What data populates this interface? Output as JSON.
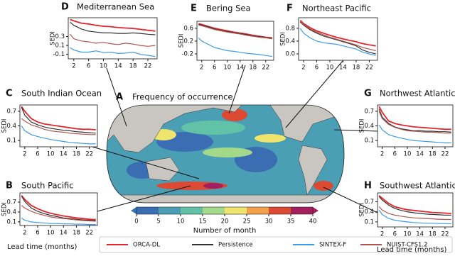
{
  "legend": [
    {
      "name": "ORCA-DL",
      "color": "#e3262a"
    },
    {
      "name": "Persistence",
      "color": "#333333"
    },
    {
      "name": "SINTEX-F",
      "color": "#3d9be6"
    },
    {
      "name": "NUIST-CFS1.2",
      "color": "#b0564f"
    }
  ],
  "map": {
    "label": "A",
    "title": "Frequency of occurrence",
    "colorbar": {
      "ticks": [
        0,
        5,
        10,
        15,
        20,
        25,
        30,
        35,
        40
      ],
      "colors": [
        "#3b6db3",
        "#4a9fb5",
        "#62c2a8",
        "#a5d98a",
        "#f0e56c",
        "#f2a24a",
        "#dd4a34",
        "#a3205c"
      ],
      "label": "Number of month"
    }
  },
  "chart_data": [
    {
      "type": "line",
      "label": "D",
      "title": "Mediterranean Sea",
      "ylabel": "SEDI",
      "x": [
        1,
        2,
        4,
        6,
        8,
        10,
        12,
        14,
        16,
        18,
        20,
        22,
        24
      ],
      "xlim": [
        0.5,
        24.5
      ],
      "xticks": [
        2,
        6,
        10,
        14,
        18,
        22
      ],
      "ylim": [
        -0.2,
        0.72
      ],
      "yticks": [
        -0.1,
        0.1,
        0.3
      ],
      "series": [
        {
          "color": "#e3262a",
          "values": [
            0.68,
            0.65,
            0.6,
            0.58,
            0.55,
            0.53,
            0.52,
            0.5,
            0.49,
            0.48,
            0.46,
            0.44,
            0.42
          ]
        },
        {
          "color": "#333333",
          "values": [
            0.62,
            0.55,
            0.47,
            0.42,
            0.4,
            0.38,
            0.38,
            0.37,
            0.37,
            0.38,
            0.37,
            0.35,
            0.34
          ]
        },
        {
          "color": "#3d9be6",
          "values": [
            0.05,
            0.0,
            -0.05,
            -0.05,
            -0.02,
            -0.06,
            -0.05,
            -0.08,
            -0.07,
            -0.05,
            -0.1,
            -0.12,
            -0.15
          ]
        },
        {
          "color": "#b0564f",
          "values": [
            0.35,
            0.25,
            0.2,
            0.18,
            0.15,
            0.17,
            0.14,
            0.12,
            0.15,
            0.13,
            0.1,
            0.08,
            0.1
          ]
        }
      ]
    },
    {
      "type": "line",
      "label": "E",
      "title": "Bering Sea",
      "ylabel": "SEDI",
      "x": [
        1,
        2,
        4,
        6,
        8,
        10,
        12,
        14,
        16,
        18,
        20,
        22,
        24
      ],
      "xlim": [
        0.5,
        24.5
      ],
      "xticks": [
        2,
        6,
        10,
        14,
        18,
        22
      ],
      "ylim": [
        -0.4,
        0.82
      ],
      "yticks": [
        -0.2,
        0.2,
        0.6
      ],
      "series": [
        {
          "color": "#e3262a",
          "values": [
            0.75,
            0.72,
            0.66,
            0.6,
            0.56,
            0.52,
            0.48,
            0.45,
            0.42,
            0.38,
            0.35,
            0.32,
            0.3
          ]
        },
        {
          "color": "#333333",
          "values": [
            0.72,
            0.7,
            0.65,
            0.58,
            0.53,
            0.5,
            0.46,
            0.44,
            0.4,
            0.36,
            0.34,
            0.31,
            0.28
          ]
        },
        {
          "color": "#3d9be6",
          "values": [
            0.3,
            0.2,
            0.1,
            0.0,
            -0.05,
            -0.1,
            -0.12,
            -0.15,
            -0.18,
            -0.2,
            -0.22,
            -0.25,
            -0.28
          ]
        },
        {
          "color": "#b0564f",
          "values": [
            0.7,
            0.68,
            0.62,
            0.56,
            0.52,
            0.48,
            0.45,
            0.42,
            0.38,
            0.35,
            0.32,
            0.3,
            0.27
          ]
        }
      ]
    },
    {
      "type": "line",
      "label": "F",
      "title": "Northeast Pacific",
      "ylabel": "SEDI",
      "x": [
        1,
        2,
        4,
        6,
        8,
        10,
        12,
        14,
        16,
        18,
        20,
        22,
        24
      ],
      "xlim": [
        0.5,
        24.5
      ],
      "xticks": [
        2,
        6,
        10,
        14,
        18,
        22
      ],
      "ylim": [
        -0.2,
        1.13
      ],
      "yticks": [
        {
          "value": 0,
          "label": "0.0"
        },
        0.4,
        0.8
      ],
      "series": [
        {
          "color": "#e3262a",
          "values": [
            1.05,
            0.95,
            0.82,
            0.72,
            0.65,
            0.58,
            0.52,
            0.47,
            0.42,
            0.38,
            0.32,
            0.28,
            0.25
          ]
        },
        {
          "color": "#333333",
          "values": [
            1.0,
            0.9,
            0.75,
            0.65,
            0.56,
            0.5,
            0.44,
            0.38,
            0.32,
            0.25,
            0.12,
            0.05,
            0.0
          ]
        },
        {
          "color": "#3d9be6",
          "values": [
            0.8,
            0.65,
            0.5,
            0.4,
            0.35,
            0.32,
            0.3,
            0.25,
            0.2,
            0.15,
            0.05,
            0.0,
            -0.05
          ]
        },
        {
          "color": "#b0564f",
          "values": [
            1.02,
            0.92,
            0.78,
            0.68,
            0.6,
            0.52,
            0.46,
            0.4,
            0.34,
            0.28,
            0.2,
            0.15,
            0.1
          ]
        }
      ]
    },
    {
      "type": "line",
      "label": "C",
      "title": "South Indian Ocean",
      "ylabel": "SEDI",
      "x": [
        1,
        2,
        4,
        6,
        8,
        10,
        12,
        14,
        16,
        18,
        20,
        22,
        24
      ],
      "xlim": [
        0.5,
        24.5
      ],
      "xticks": [
        2,
        6,
        10,
        14,
        18,
        22
      ],
      "ylim": [
        -0.03,
        0.83
      ],
      "yticks": [
        0.1,
        0.4,
        0.7
      ],
      "series": [
        {
          "color": "#e3262a",
          "values": [
            0.8,
            0.7,
            0.55,
            0.48,
            0.44,
            0.42,
            0.4,
            0.38,
            0.36,
            0.34,
            0.33,
            0.33,
            0.32
          ]
        },
        {
          "color": "#333333",
          "values": [
            0.78,
            0.62,
            0.48,
            0.42,
            0.38,
            0.35,
            0.33,
            0.31,
            0.3,
            0.28,
            0.27,
            0.26,
            0.25
          ]
        },
        {
          "color": "#3d9be6",
          "values": [
            0.4,
            0.3,
            0.22,
            0.18,
            0.15,
            0.12,
            0.1,
            0.08,
            0.06,
            0.05,
            0.04,
            0.03,
            0.03
          ]
        },
        {
          "color": "#b0564f",
          "values": [
            0.55,
            0.5,
            0.42,
            0.38,
            0.33,
            0.3,
            0.28,
            0.27,
            0.25,
            0.24,
            0.23,
            0.22,
            0.22
          ]
        }
      ]
    },
    {
      "type": "line",
      "label": "B",
      "title": "South Pacific",
      "ylabel": "SEDI",
      "xlabel": "Lead time (months)",
      "x": [
        1,
        2,
        4,
        6,
        8,
        10,
        12,
        14,
        16,
        18,
        20,
        22,
        24
      ],
      "xlim": [
        0.5,
        24.5
      ],
      "xticks": [
        2,
        6,
        10,
        14,
        18,
        22
      ],
      "ylim": [
        -0.01,
        0.98
      ],
      "yticks": [
        0.1,
        0.4,
        0.7
      ],
      "series": [
        {
          "color": "#e3262a",
          "values": [
            0.9,
            0.78,
            0.6,
            0.5,
            0.42,
            0.36,
            0.32,
            0.28,
            0.25,
            0.22,
            0.2,
            0.18,
            0.17
          ]
        },
        {
          "color": "#333333",
          "values": [
            0.88,
            0.72,
            0.52,
            0.42,
            0.35,
            0.3,
            0.26,
            0.22,
            0.2,
            0.18,
            0.16,
            0.15,
            0.14
          ]
        },
        {
          "color": "#3d9be6",
          "values": [
            0.22,
            0.15,
            0.1,
            0.08,
            0.07,
            0.05,
            0.05,
            0.04,
            0.04,
            0.03,
            0.03,
            0.02,
            0.02
          ]
        },
        {
          "color": "#b0564f",
          "values": [
            0.6,
            0.52,
            0.42,
            0.35,
            0.3,
            0.25,
            0.22,
            0.2,
            0.18,
            0.16,
            0.14,
            0.13,
            0.12
          ]
        }
      ]
    },
    {
      "type": "line",
      "label": "G",
      "title": "Northwest Atlantic",
      "ylabel": "SEDI",
      "x": [
        1,
        2,
        4,
        6,
        8,
        10,
        12,
        14,
        16,
        18,
        20,
        22,
        24
      ],
      "xlim": [
        0.5,
        24.5
      ],
      "xticks": [
        2,
        6,
        10,
        14,
        18,
        22
      ],
      "ylim": [
        -0.03,
        0.83
      ],
      "yticks": [
        0.1,
        0.4,
        0.7
      ],
      "series": [
        {
          "color": "#e3262a",
          "values": [
            0.8,
            0.68,
            0.5,
            0.45,
            0.42,
            0.4,
            0.38,
            0.37,
            0.36,
            0.35,
            0.34,
            0.33,
            0.33
          ]
        },
        {
          "color": "#333333",
          "values": [
            0.75,
            0.58,
            0.45,
            0.38,
            0.34,
            0.32,
            0.3,
            0.3,
            0.29,
            0.29,
            0.28,
            0.28,
            0.27
          ]
        },
        {
          "color": "#3d9be6",
          "values": [
            0.42,
            0.32,
            0.22,
            0.18,
            0.15,
            0.12,
            0.1,
            0.09,
            0.08,
            0.07,
            0.06,
            0.05,
            0.05
          ]
        },
        {
          "color": "#b0564f",
          "values": [
            0.7,
            0.55,
            0.43,
            0.37,
            0.33,
            0.3,
            0.29,
            0.28,
            0.27,
            0.27,
            0.26,
            0.25,
            0.25
          ]
        }
      ]
    },
    {
      "type": "line",
      "label": "H",
      "title": "Southwest Atlantic",
      "ylabel": "SEDI",
      "xlabel": "Lead time (months)",
      "x": [
        1,
        2,
        4,
        6,
        8,
        10,
        12,
        14,
        16,
        18,
        20,
        22,
        24
      ],
      "xlim": [
        0.5,
        24.5
      ],
      "xticks": [
        2,
        6,
        10,
        14,
        18,
        22
      ],
      "ylim": [
        -0.05,
        0.96
      ],
      "yticks": [
        0.1,
        0.4,
        0.7
      ],
      "series": [
        {
          "color": "#e3262a",
          "values": [
            0.88,
            0.8,
            0.65,
            0.55,
            0.5,
            0.46,
            0.44,
            0.42,
            0.4,
            0.38,
            0.37,
            0.36,
            0.35
          ]
        },
        {
          "color": "#333333",
          "values": [
            0.85,
            0.75,
            0.6,
            0.5,
            0.44,
            0.4,
            0.37,
            0.35,
            0.33,
            0.32,
            0.31,
            0.3,
            0.3
          ]
        },
        {
          "color": "#3d9be6",
          "values": [
            0.45,
            0.32,
            0.2,
            0.15,
            0.12,
            0.1,
            0.08,
            0.07,
            0.06,
            0.06,
            0.05,
            0.05,
            0.04
          ]
        },
        {
          "color": "#b0564f",
          "values": [
            0.55,
            0.45,
            0.35,
            0.3,
            0.27,
            0.24,
            0.22,
            0.21,
            0.2,
            0.19,
            0.18,
            0.17,
            0.17
          ]
        }
      ]
    }
  ]
}
